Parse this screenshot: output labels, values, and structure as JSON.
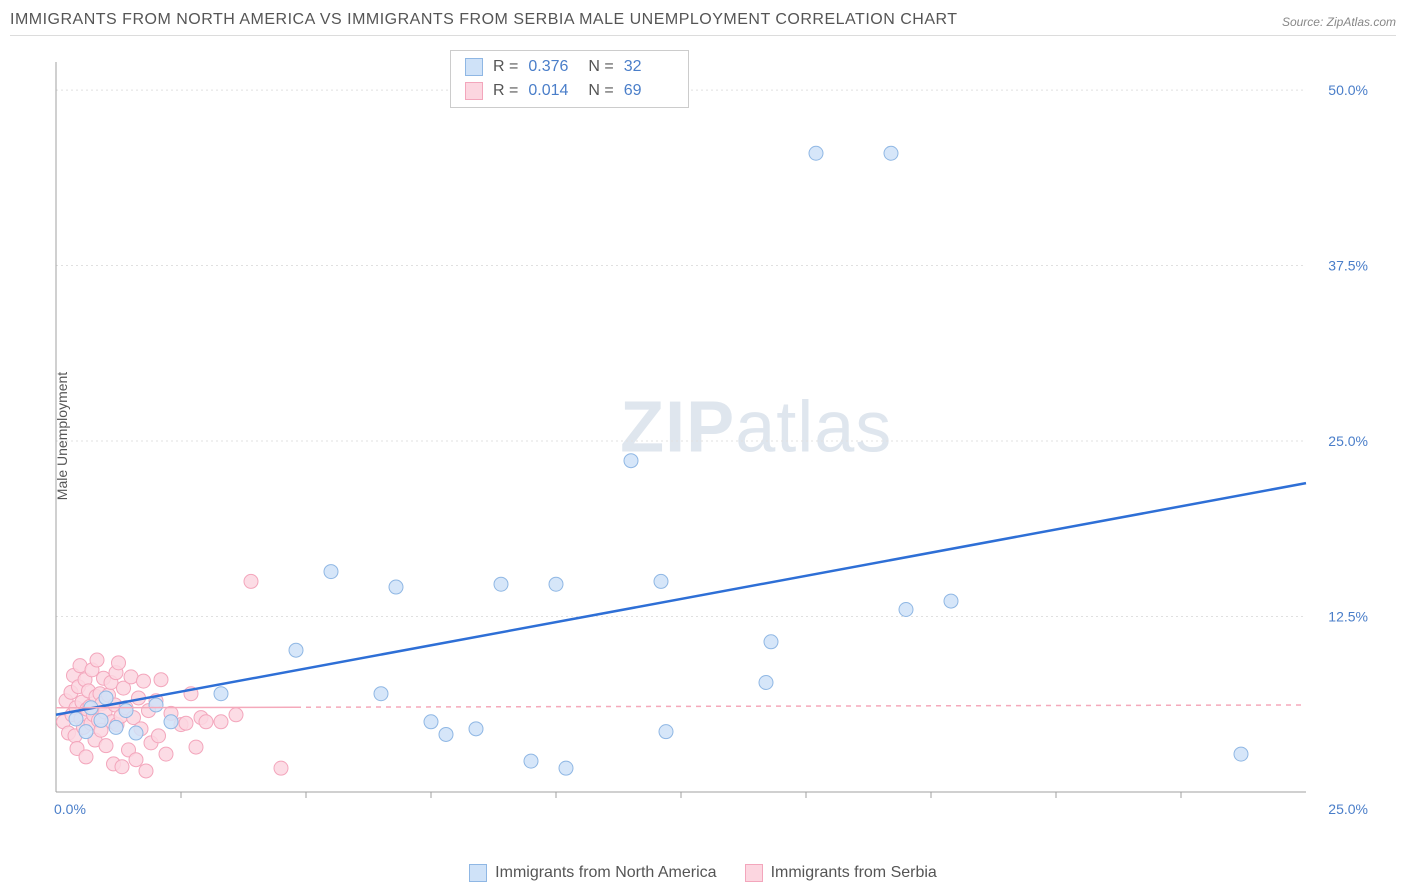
{
  "title": "IMMIGRANTS FROM NORTH AMERICA VS IMMIGRANTS FROM SERBIA MALE UNEMPLOYMENT CORRELATION CHART",
  "source": "Source: ZipAtlas.com",
  "ylabel": "Male Unemployment",
  "watermark_a": "ZIP",
  "watermark_b": "atlas",
  "chart": {
    "type": "scatter",
    "xlim": [
      0,
      25
    ],
    "ylim": [
      0,
      52
    ],
    "y_ticks": [
      12.5,
      25.0,
      37.5,
      50.0
    ],
    "y_tick_labels": [
      "12.5%",
      "25.0%",
      "37.5%",
      "50.0%"
    ],
    "x_origin_label": "0.0%",
    "x_end_label": "25.0%",
    "x_tick_marks": [
      2.5,
      5,
      7.5,
      10,
      12.5,
      15,
      17.5,
      20,
      22.5
    ],
    "background_color": "#ffffff",
    "grid_color": "#e0e0e0",
    "axis_color": "#a0a0a0",
    "tick_label_color": "#4a7ec9",
    "marker_radius": 7,
    "watermark_color": "#dfe6ee",
    "series": {
      "blue": {
        "label": "Immigrants from North America",
        "fill": "#cfe2f8",
        "stroke": "#8fb7e4",
        "trend_color": "#2e6fd6",
        "trend": {
          "x1": 0,
          "y1": 5.5,
          "x2": 25,
          "y2": 22.0
        },
        "R": "0.376",
        "N": "32",
        "points": [
          [
            0.4,
            5.2
          ],
          [
            0.6,
            4.3
          ],
          [
            0.7,
            6.0
          ],
          [
            0.9,
            5.1
          ],
          [
            1.0,
            6.7
          ],
          [
            1.2,
            4.6
          ],
          [
            1.4,
            5.8
          ],
          [
            1.6,
            4.2
          ],
          [
            2.0,
            6.2
          ],
          [
            2.3,
            5.0
          ],
          [
            3.3,
            7.0
          ],
          [
            4.8,
            10.1
          ],
          [
            5.5,
            15.7
          ],
          [
            6.5,
            7.0
          ],
          [
            6.8,
            14.6
          ],
          [
            7.5,
            5.0
          ],
          [
            7.8,
            4.1
          ],
          [
            8.4,
            4.5
          ],
          [
            8.9,
            14.8
          ],
          [
            9.5,
            2.2
          ],
          [
            10.0,
            14.8
          ],
          [
            10.2,
            1.7
          ],
          [
            11.5,
            23.6
          ],
          [
            12.1,
            15.0
          ],
          [
            12.2,
            4.3
          ],
          [
            14.2,
            7.8
          ],
          [
            14.3,
            10.7
          ],
          [
            15.2,
            45.5
          ],
          [
            16.7,
            45.5
          ],
          [
            17.0,
            13.0
          ],
          [
            17.9,
            13.6
          ],
          [
            23.7,
            2.7
          ]
        ]
      },
      "pink": {
        "label": "Immigrants from Serbia",
        "fill": "#fcd6e0",
        "stroke": "#f3a6bc",
        "trend_color": "#f5a9bb",
        "trend_solid_xmax": 4.8,
        "trend": {
          "x1": 0,
          "y1": 6.0,
          "x2": 25,
          "y2": 6.2
        },
        "R": "0.014",
        "N": "69",
        "points": [
          [
            0.15,
            5.0
          ],
          [
            0.2,
            6.5
          ],
          [
            0.25,
            4.2
          ],
          [
            0.3,
            7.1
          ],
          [
            0.32,
            5.5
          ],
          [
            0.35,
            8.3
          ],
          [
            0.38,
            4.0
          ],
          [
            0.4,
            6.0
          ],
          [
            0.42,
            3.1
          ],
          [
            0.45,
            7.5
          ],
          [
            0.48,
            9.0
          ],
          [
            0.5,
            5.2
          ],
          [
            0.52,
            6.4
          ],
          [
            0.55,
            4.6
          ],
          [
            0.58,
            8.0
          ],
          [
            0.6,
            2.5
          ],
          [
            0.62,
            5.9
          ],
          [
            0.65,
            7.2
          ],
          [
            0.68,
            6.1
          ],
          [
            0.7,
            4.9
          ],
          [
            0.72,
            8.7
          ],
          [
            0.75,
            5.5
          ],
          [
            0.78,
            3.7
          ],
          [
            0.8,
            6.8
          ],
          [
            0.82,
            9.4
          ],
          [
            0.85,
            5.1
          ],
          [
            0.88,
            7.0
          ],
          [
            0.9,
            4.4
          ],
          [
            0.92,
            6.3
          ],
          [
            0.95,
            8.1
          ],
          [
            0.98,
            5.7
          ],
          [
            1.0,
            3.3
          ],
          [
            1.05,
            6.9
          ],
          [
            1.1,
            7.8
          ],
          [
            1.12,
            5.0
          ],
          [
            1.15,
            2.0
          ],
          [
            1.18,
            6.2
          ],
          [
            1.2,
            8.5
          ],
          [
            1.22,
            4.8
          ],
          [
            1.25,
            9.2
          ],
          [
            1.3,
            5.4
          ],
          [
            1.32,
            1.8
          ],
          [
            1.35,
            7.4
          ],
          [
            1.4,
            6.0
          ],
          [
            1.45,
            3.0
          ],
          [
            1.5,
            8.2
          ],
          [
            1.55,
            5.3
          ],
          [
            1.6,
            2.3
          ],
          [
            1.65,
            6.7
          ],
          [
            1.7,
            4.5
          ],
          [
            1.75,
            7.9
          ],
          [
            1.8,
            1.5
          ],
          [
            1.85,
            5.8
          ],
          [
            1.9,
            3.5
          ],
          [
            2.0,
            6.5
          ],
          [
            2.05,
            4.0
          ],
          [
            2.1,
            8.0
          ],
          [
            2.2,
            2.7
          ],
          [
            2.3,
            5.6
          ],
          [
            2.5,
            4.8
          ],
          [
            2.6,
            4.9
          ],
          [
            2.7,
            7.0
          ],
          [
            2.8,
            3.2
          ],
          [
            2.9,
            5.3
          ],
          [
            3.0,
            5.0
          ],
          [
            3.3,
            5.0
          ],
          [
            3.6,
            5.5
          ],
          [
            3.9,
            15.0
          ],
          [
            4.5,
            1.7
          ]
        ]
      }
    }
  },
  "legend": {
    "blue_label": "Immigrants from North America",
    "pink_label": "Immigrants from Serbia"
  },
  "stats_labels": {
    "R": "R =",
    "N": "N ="
  }
}
